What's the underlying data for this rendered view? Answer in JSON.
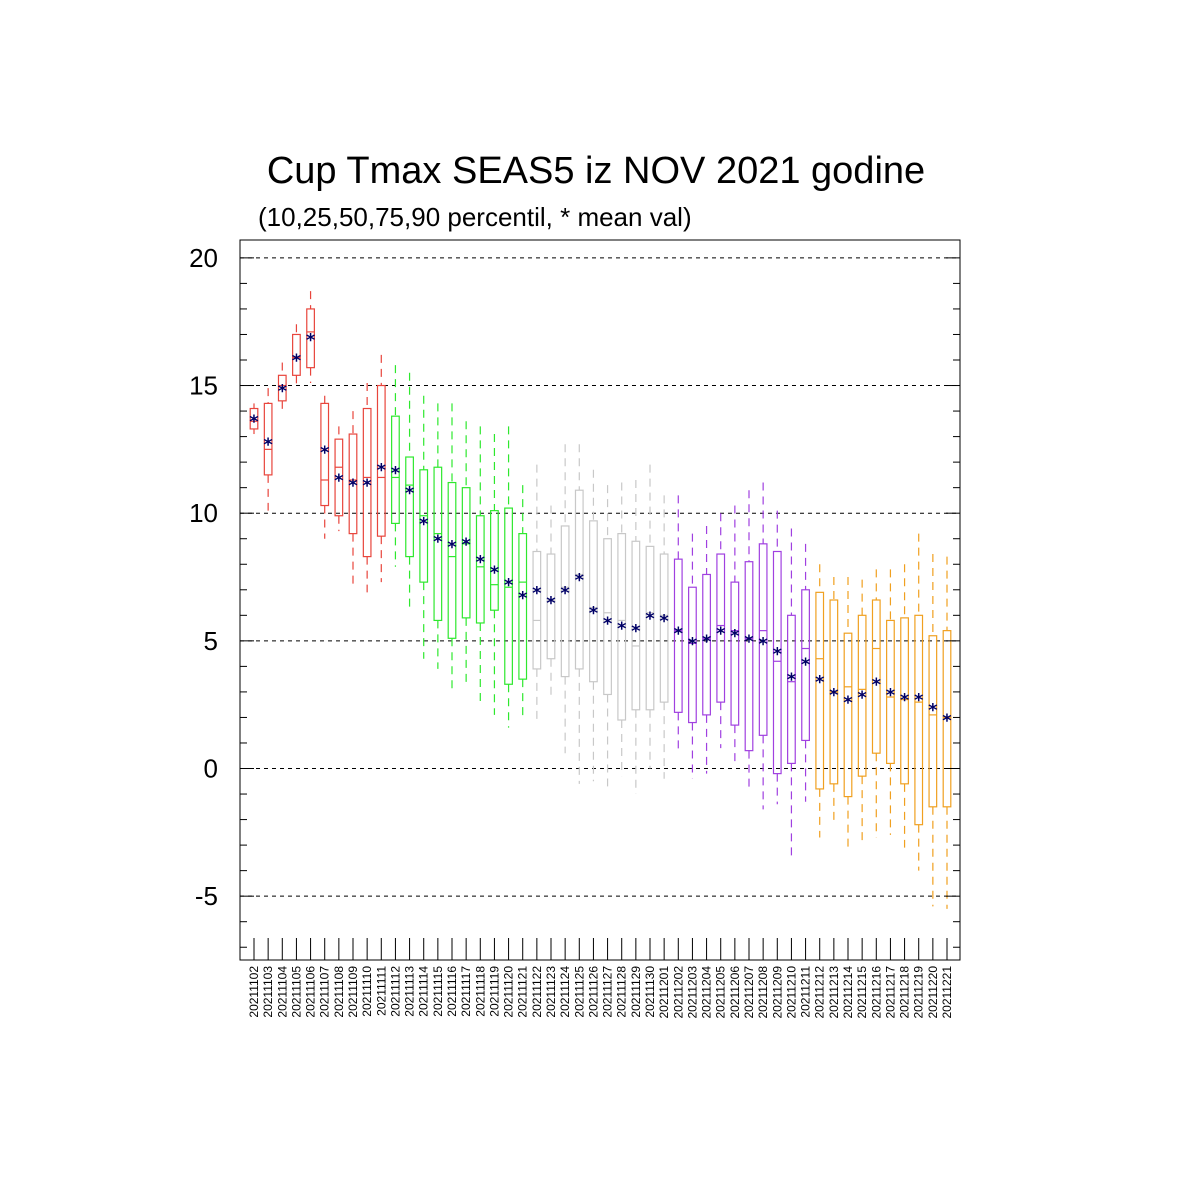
{
  "chart_data": {
    "type": "boxplot",
    "title": "Cup Tmax SEAS5 iz NOV 2021 godine",
    "subtitle": "(10,25,50,75,90 percentil, * mean val)",
    "xlabel": "",
    "ylabel": "",
    "ylim": [
      -7.5,
      20.7
    ],
    "yticks": [
      -5,
      0,
      5,
      10,
      15,
      20
    ],
    "grid": "horizontal dashed at major y ticks",
    "mean_marker": "*",
    "colors": {
      "red": "#e8453c",
      "green": "#2ee82e",
      "gray": "#c8c8c8",
      "purple": "#a040e0",
      "orange": "#f0a020",
      "mean": "#000066"
    },
    "categories": [
      "20211102",
      "20211103",
      "20211104",
      "20211105",
      "20211106",
      "20211107",
      "20211108",
      "20211109",
      "20211110",
      "20211111",
      "20211112",
      "20211113",
      "20211114",
      "20211115",
      "20211116",
      "20211117",
      "20211118",
      "20211119",
      "20211120",
      "20211121",
      "20211122",
      "20211123",
      "20211124",
      "20211125",
      "20211126",
      "20211127",
      "20211128",
      "20211129",
      "20211130",
      "20211201",
      "20211202",
      "20211203",
      "20211204",
      "20211205",
      "20211206",
      "20211207",
      "20211208",
      "20211209",
      "20211210",
      "20211211",
      "20211212",
      "20211213",
      "20211214",
      "20211215",
      "20211216",
      "20211217",
      "20211218",
      "20211219",
      "20211220",
      "20211221"
    ],
    "boxes": [
      {
        "p10": 13.1,
        "p25": 13.3,
        "p50": 13.6,
        "p75": 14.1,
        "p90": 14.3,
        "mean": 13.7,
        "color": "red"
      },
      {
        "p10": 10.1,
        "p25": 11.5,
        "p50": 12.5,
        "p75": 14.3,
        "p90": 14.9,
        "mean": 12.8,
        "color": "red"
      },
      {
        "p10": 13.9,
        "p25": 14.4,
        "p50": 15.0,
        "p75": 15.4,
        "p90": 15.9,
        "mean": 14.9,
        "color": "red"
      },
      {
        "p10": 14.9,
        "p25": 15.4,
        "p50": 16.1,
        "p75": 17.0,
        "p90": 17.4,
        "mean": 16.1,
        "color": "red"
      },
      {
        "p10": 15.1,
        "p25": 15.7,
        "p50": 17.1,
        "p75": 18.0,
        "p90": 18.7,
        "mean": 16.9,
        "color": "red"
      },
      {
        "p10": 9.0,
        "p25": 10.3,
        "p50": 11.3,
        "p75": 14.3,
        "p90": 14.6,
        "mean": 12.5,
        "color": "red"
      },
      {
        "p10": 9.3,
        "p25": 9.9,
        "p50": 11.8,
        "p75": 12.9,
        "p90": 13.4,
        "mean": 11.4,
        "color": "red"
      },
      {
        "p10": 7.2,
        "p25": 9.2,
        "p50": 11.3,
        "p75": 13.1,
        "p90": 14.0,
        "mean": 11.2,
        "color": "red"
      },
      {
        "p10": 6.9,
        "p25": 8.3,
        "p50": 11.4,
        "p75": 14.1,
        "p90": 15.1,
        "mean": 11.2,
        "color": "red"
      },
      {
        "p10": 7.3,
        "p25": 9.1,
        "p50": 11.4,
        "p75": 15.0,
        "p90": 16.2,
        "mean": 11.8,
        "color": "red"
      },
      {
        "p10": 7.9,
        "p25": 9.6,
        "p50": 11.4,
        "p75": 13.8,
        "p90": 15.8,
        "mean": 11.7,
        "color": "green"
      },
      {
        "p10": 6.2,
        "p25": 8.3,
        "p50": 11.1,
        "p75": 12.2,
        "p90": 15.5,
        "mean": 10.9,
        "color": "green"
      },
      {
        "p10": 4.3,
        "p25": 7.3,
        "p50": 9.9,
        "p75": 11.7,
        "p90": 14.6,
        "mean": 9.7,
        "color": "green"
      },
      {
        "p10": 3.9,
        "p25": 5.8,
        "p50": 9.2,
        "p75": 11.8,
        "p90": 14.3,
        "mean": 9.0,
        "color": "green"
      },
      {
        "p10": 3.1,
        "p25": 5.1,
        "p50": 8.3,
        "p75": 11.2,
        "p90": 14.3,
        "mean": 8.8,
        "color": "green"
      },
      {
        "p10": 3.3,
        "p25": 5.9,
        "p50": 8.8,
        "p75": 11.0,
        "p90": 13.6,
        "mean": 8.9,
        "color": "green"
      },
      {
        "p10": 2.5,
        "p25": 5.7,
        "p50": 7.9,
        "p75": 9.9,
        "p90": 13.4,
        "mean": 8.2,
        "color": "green"
      },
      {
        "p10": 2.1,
        "p25": 6.2,
        "p50": 7.2,
        "p75": 10.1,
        "p90": 13.1,
        "mean": 7.8,
        "color": "green"
      },
      {
        "p10": 1.6,
        "p25": 3.3,
        "p50": 7.1,
        "p75": 10.2,
        "p90": 13.4,
        "mean": 7.3,
        "color": "green"
      },
      {
        "p10": 1.9,
        "p25": 3.5,
        "p50": 7.3,
        "p75": 9.2,
        "p90": 11.1,
        "mean": 6.8,
        "color": "green"
      },
      {
        "p10": 1.9,
        "p25": 3.9,
        "p50": 5.8,
        "p75": 8.5,
        "p90": 11.9,
        "mean": 7.0,
        "color": "gray"
      },
      {
        "p10": 2.7,
        "p25": 4.3,
        "p50": 6.6,
        "p75": 8.4,
        "p90": 10.3,
        "mean": 6.6,
        "color": "gray"
      },
      {
        "p10": 0.6,
        "p25": 3.6,
        "p50": 7.1,
        "p75": 9.5,
        "p90": 12.7,
        "mean": 7.0,
        "color": "gray"
      },
      {
        "p10": -0.6,
        "p25": 3.9,
        "p50": 7.6,
        "p75": 10.9,
        "p90": 12.7,
        "mean": 7.5,
        "color": "gray"
      },
      {
        "p10": -0.5,
        "p25": 3.4,
        "p50": 6.3,
        "p75": 9.7,
        "p90": 11.7,
        "mean": 6.2,
        "color": "gray"
      },
      {
        "p10": -0.7,
        "p25": 2.9,
        "p50": 6.1,
        "p75": 9.0,
        "p90": 11.1,
        "mean": 5.8,
        "color": "gray"
      },
      {
        "p10": -0.3,
        "p25": 1.9,
        "p50": 5.8,
        "p75": 9.2,
        "p90": 11.2,
        "mean": 5.6,
        "color": "gray"
      },
      {
        "p10": -1.0,
        "p25": 2.3,
        "p50": 4.8,
        "p75": 8.9,
        "p90": 11.3,
        "mean": 5.5,
        "color": "gray"
      },
      {
        "p10": 0.0,
        "p25": 2.3,
        "p50": 6.1,
        "p75": 8.7,
        "p90": 11.9,
        "mean": 6.0,
        "color": "gray"
      },
      {
        "p10": -0.4,
        "p25": 2.6,
        "p50": 6.0,
        "p75": 8.4,
        "p90": 10.7,
        "mean": 5.9,
        "color": "gray"
      },
      {
        "p10": 0.7,
        "p25": 2.2,
        "p50": 5.4,
        "p75": 8.2,
        "p90": 10.7,
        "mean": 5.4,
        "color": "purple"
      },
      {
        "p10": -0.4,
        "p25": 1.8,
        "p50": 4.9,
        "p75": 7.1,
        "p90": 9.2,
        "mean": 5.0,
        "color": "purple"
      },
      {
        "p10": -0.2,
        "p25": 2.1,
        "p50": 5.1,
        "p75": 7.6,
        "p90": 9.5,
        "mean": 5.1,
        "color": "purple"
      },
      {
        "p10": 0.8,
        "p25": 2.6,
        "p50": 5.6,
        "p75": 8.4,
        "p90": 10.0,
        "mean": 5.4,
        "color": "purple"
      },
      {
        "p10": 0.1,
        "p25": 1.7,
        "p50": 5.4,
        "p75": 7.3,
        "p90": 10.3,
        "mean": 5.3,
        "color": "purple"
      },
      {
        "p10": -0.9,
        "p25": 0.7,
        "p50": 5.1,
        "p75": 8.1,
        "p90": 10.9,
        "mean": 5.1,
        "color": "purple"
      },
      {
        "p10": -1.6,
        "p25": 1.3,
        "p50": 5.4,
        "p75": 8.8,
        "p90": 11.2,
        "mean": 5.0,
        "color": "purple"
      },
      {
        "p10": -1.4,
        "p25": -0.2,
        "p50": 4.2,
        "p75": 8.5,
        "p90": 10.1,
        "mean": 4.6,
        "color": "purple"
      },
      {
        "p10": -3.6,
        "p25": 0.2,
        "p50": 3.4,
        "p75": 6.0,
        "p90": 9.4,
        "mean": 3.6,
        "color": "purple"
      },
      {
        "p10": -1.3,
        "p25": 1.1,
        "p50": 4.7,
        "p75": 7.0,
        "p90": 8.8,
        "mean": 4.2,
        "color": "purple"
      },
      {
        "p10": -2.7,
        "p25": -0.8,
        "p50": 4.3,
        "p75": 6.9,
        "p90": 8.0,
        "mean": 3.5,
        "color": "orange"
      },
      {
        "p10": -2.2,
        "p25": -0.6,
        "p50": 3.0,
        "p75": 6.6,
        "p90": 7.5,
        "mean": 3.0,
        "color": "orange"
      },
      {
        "p10": -3.1,
        "p25": -1.1,
        "p50": 3.2,
        "p75": 5.3,
        "p90": 7.5,
        "mean": 2.7,
        "color": "orange"
      },
      {
        "p10": -2.9,
        "p25": -0.3,
        "p50": 3.1,
        "p75": 6.0,
        "p90": 7.4,
        "mean": 2.9,
        "color": "orange"
      },
      {
        "p10": -2.7,
        "p25": 0.6,
        "p50": 4.7,
        "p75": 6.6,
        "p90": 7.8,
        "mean": 3.4,
        "color": "orange"
      },
      {
        "p10": -2.6,
        "p25": 0.2,
        "p50": 2.8,
        "p75": 5.8,
        "p90": 7.8,
        "mean": 3.0,
        "color": "orange"
      },
      {
        "p10": -3.1,
        "p25": -0.6,
        "p50": 2.7,
        "p75": 5.9,
        "p90": 8.0,
        "mean": 2.8,
        "color": "orange"
      },
      {
        "p10": -4.0,
        "p25": -2.2,
        "p50": 2.6,
        "p75": 6.0,
        "p90": 9.2,
        "mean": 2.8,
        "color": "orange"
      },
      {
        "p10": -5.4,
        "p25": -1.5,
        "p50": 2.1,
        "p75": 5.2,
        "p90": 8.4,
        "mean": 2.4,
        "color": "orange"
      },
      {
        "p10": -5.5,
        "p25": -1.5,
        "p50": 2.0,
        "p75": 5.4,
        "p90": 8.3,
        "mean": 2.0,
        "color": "orange"
      }
    ]
  }
}
